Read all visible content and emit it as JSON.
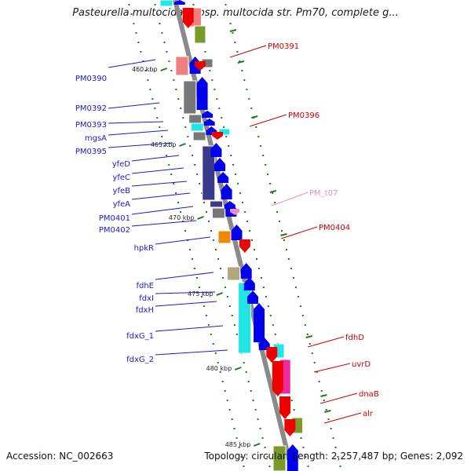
{
  "title": "Pasteurella multocida subsp. multocida str. Pm70, complete g...",
  "footer": {
    "accession": "Accession: NC_002663",
    "summary": "Topology: circular; Length: 2,257,487 bp; Genes: 2,092"
  },
  "kbp_labels": [
    "460 kbp",
    "465 kbp",
    "470 kbp",
    "475 kbp",
    "480 kbp",
    "485 kbp"
  ],
  "left_genes": [
    "PM0390",
    "PM0392",
    "PM0393",
    "mgsA",
    "PM0395",
    "yfeD",
    "yfeC",
    "yfeB",
    "yfeA",
    "PM0401",
    "PM0402",
    "hpkR",
    "fdhE",
    "fdxI",
    "fdxH",
    "fdxG_1",
    "fdxG_2"
  ],
  "right_genes": [
    "PM0391",
    "PM0396",
    "PM_t07",
    "PM0404",
    "fdhD",
    "uvrD",
    "dnaB",
    "alr"
  ],
  "colors": {
    "plus_strand_label": "#1a1acc",
    "minus_strand_label": "#cc0000",
    "trna_label": "#f08cc0",
    "backbone": "#8c8c8c",
    "ticks": "#1f7a1f",
    "arrow_blue": "#0000ee",
    "arrow_red": "#ee0000",
    "cog_gray": "#777777",
    "cog_cyan": "#22e5e5",
    "cog_navy": "#3a3a8a",
    "cog_pink": "#ee2aa0",
    "cog_salmon": "#f08080",
    "cog_olive": "#7a9a2a",
    "cog_tan": "#b0a878",
    "cog_orange": "#ee8800"
  }
}
